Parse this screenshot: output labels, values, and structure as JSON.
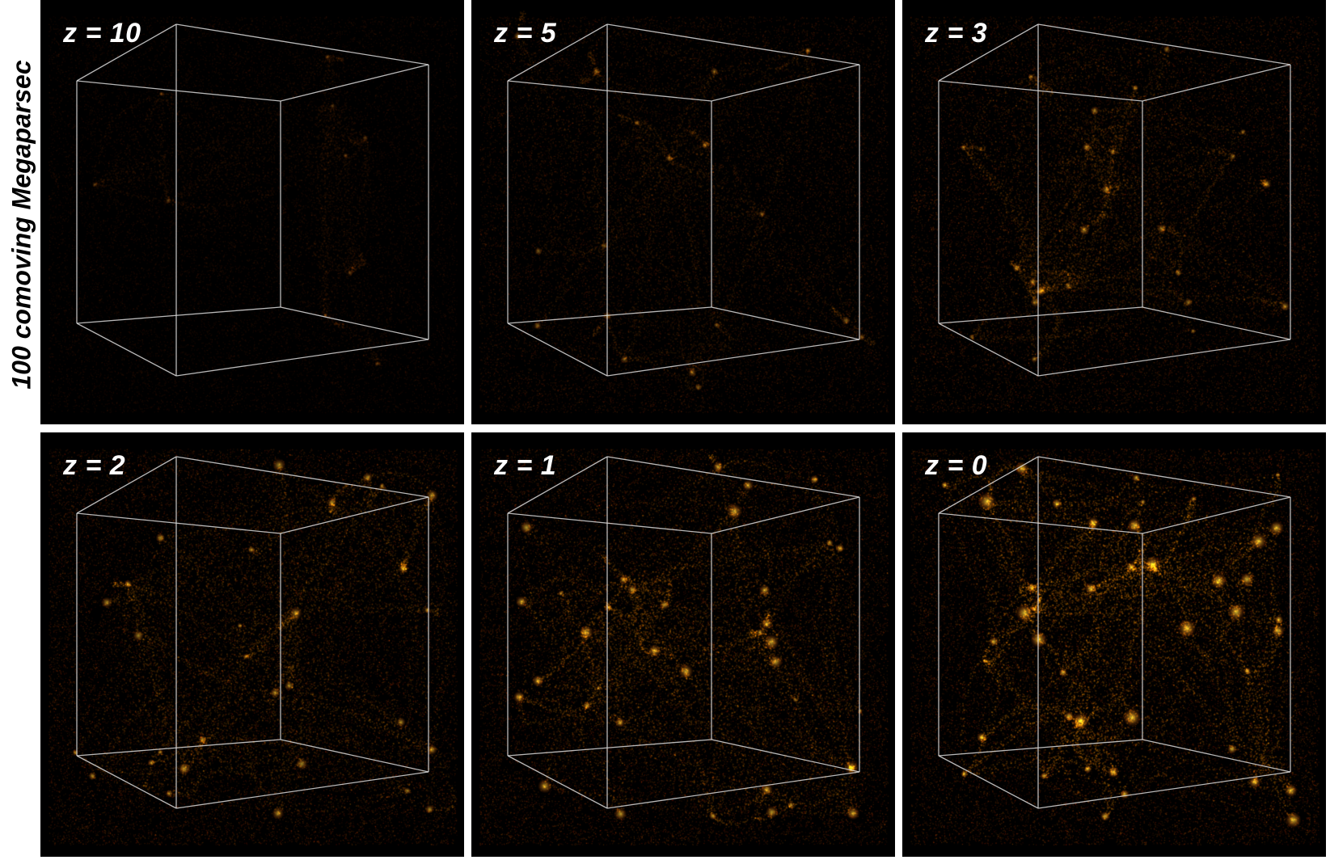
{
  "scale_bar": {
    "label": "100 comoving Megaparsec",
    "arrow_color": "#e8620f"
  },
  "panels": [
    {
      "label": "z = 10",
      "redshift": 10,
      "relative_intensity": 0.32,
      "clustering": 0.05
    },
    {
      "label": "z = 5",
      "redshift": 5,
      "relative_intensity": 0.62,
      "clustering": 0.25
    },
    {
      "label": "z = 3",
      "redshift": 3,
      "relative_intensity": 0.78,
      "clustering": 0.4
    },
    {
      "label": "z = 2",
      "redshift": 2,
      "relative_intensity": 0.85,
      "clustering": 0.55
    },
    {
      "label": "z = 1",
      "redshift": 1,
      "relative_intensity": 0.88,
      "clustering": 0.7
    },
    {
      "label": "z = 0",
      "redshift": 0,
      "relative_intensity": 0.92,
      "clustering": 0.9
    }
  ],
  "colors": {
    "background": "#000000",
    "filament_dark": "#5a0a00",
    "filament_mid": "#c83c00",
    "filament_bright": "#ffb020",
    "cube_edge": "#d8d8d8"
  }
}
